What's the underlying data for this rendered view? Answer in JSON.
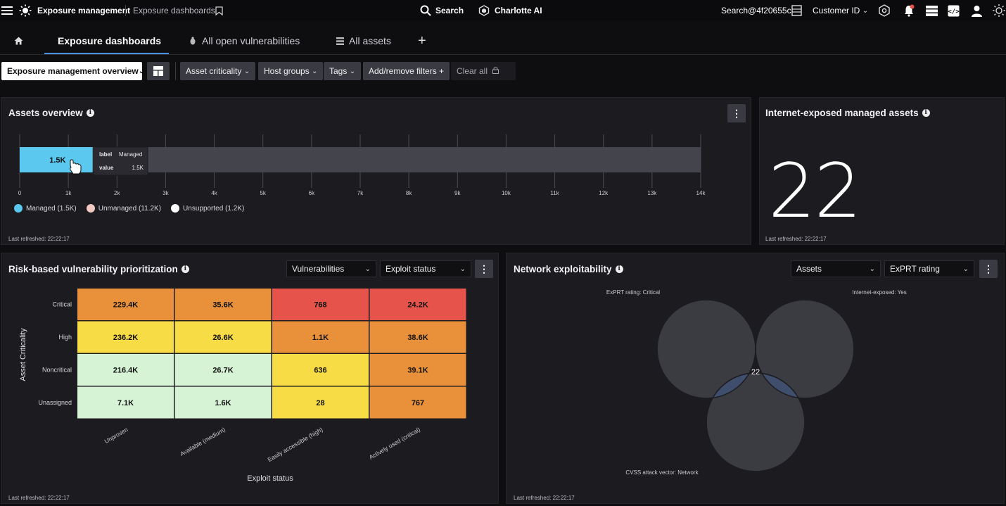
{
  "topbar": {
    "app_name": "Exposure management",
    "breadcrumb": "Exposure dashboards",
    "search_label": "Search",
    "charlotte_label": "Charlotte AI",
    "user": "Search@4f20655c",
    "customer_label": "Customer ID"
  },
  "tabs": [
    {
      "label": "Exposure dashboards",
      "active": true
    },
    {
      "label": "All open vulnerabilities",
      "active": false
    },
    {
      "label": "All assets",
      "active": false
    }
  ],
  "filters": {
    "dashboard_select": "Exposure management overview",
    "asset_criticality": "Asset criticality",
    "host_groups": "Host groups",
    "tags": "Tags",
    "add_remove": "Add/remove filters",
    "clear_all": "Clear all"
  },
  "assets_overview": {
    "title": "Assets overview",
    "bar_label": "1.5K",
    "tooltip": {
      "label_key": "label",
      "label_value": "Managed",
      "value_key": "value",
      "value_value": "1.5K"
    },
    "ticks": [
      "0",
      "1k",
      "2k",
      "3k",
      "4k",
      "5k",
      "6k",
      "7k",
      "8k",
      "9k",
      "10k",
      "11k",
      "12k",
      "13k",
      "14k"
    ],
    "legend": [
      {
        "label": "Managed (1.5K)",
        "color": "#5bc8ef"
      },
      {
        "label": "Unmanaged (11.2K)",
        "color": "#f2c8c2"
      },
      {
        "label": "Unsupported (1.2K)",
        "color": "#ffffff"
      }
    ],
    "refreshed": "Last refreshed: 22:22:17"
  },
  "internet_exposed": {
    "title": "Internet-exposed managed assets",
    "value": "22",
    "refreshed": "Last refreshed: 22:22:17"
  },
  "risk_prioritization": {
    "title": "Risk-based vulnerability prioritization",
    "select1": "Vulnerabilities",
    "select2": "Exploit status",
    "y_axis_label": "Asset Criticality",
    "x_axis_label": "Exploit status",
    "rows": [
      "Critical",
      "High",
      "Noncritical",
      "Unassigned"
    ],
    "cols": [
      "Unproven",
      "Available (medium)",
      "Easily accessible (high)",
      "Actively used (critical)"
    ],
    "cells": [
      [
        "229.4K",
        "35.6K",
        "768",
        "24.2K"
      ],
      [
        "236.2K",
        "26.6K",
        "1.1K",
        "38.6K"
      ],
      [
        "216.4K",
        "26.7K",
        "636",
        "39.1K"
      ],
      [
        "7.1K",
        "1.6K",
        "28",
        "767"
      ]
    ],
    "refreshed": "Last refreshed: 22:22:17"
  },
  "network_exploitability": {
    "title": "Network exploitability",
    "select1": "Assets",
    "select2": "ExPRT rating",
    "set_a": "ExPRT rating: Critical",
    "set_b": "Internet-exposed: Yes",
    "set_c": "CVSS attack vector: Network",
    "intersection": "22",
    "refreshed": "Last refreshed: 22:22:17"
  },
  "chart_data": [
    {
      "type": "bar",
      "title": "Assets overview",
      "orientation": "horizontal-stacked",
      "series": [
        {
          "name": "Managed (1.5K)",
          "values": [
            1500
          ]
        },
        {
          "name": "Unmanaged (11.2K)",
          "values": [
            11200
          ]
        },
        {
          "name": "Unsupported (1.2K)",
          "values": [
            1200
          ]
        }
      ],
      "xlim": [
        0,
        14000
      ],
      "legend_position": "bottom-left"
    },
    {
      "type": "heatmap",
      "title": "Risk-based vulnerability prioritization",
      "xlabel": "Exploit status",
      "ylabel": "Asset Criticality",
      "x": [
        "Unproven",
        "Available (medium)",
        "Easily accessible (high)",
        "Actively used (critical)"
      ],
      "y": [
        "Critical",
        "High",
        "Noncritical",
        "Unassigned"
      ],
      "values": [
        [
          229400,
          35600,
          768,
          24200
        ],
        [
          236200,
          26600,
          1100,
          38600
        ],
        [
          216400,
          26700,
          636,
          39100
        ],
        [
          7100,
          1600,
          28,
          767
        ]
      ],
      "cell_colors": [
        [
          "orange",
          "orange",
          "red",
          "red"
        ],
        [
          "yellow",
          "yellow",
          "orange",
          "orange"
        ],
        [
          "green",
          "green",
          "yellow",
          "orange"
        ],
        [
          "green",
          "green",
          "yellow",
          "orange"
        ]
      ]
    }
  ],
  "colors": {
    "orange": "#e8913a",
    "red": "#e5534b",
    "yellow": "#f7dc45",
    "green": "#d6f3d6",
    "managed": "#5bc8ef",
    "accent": "#4a90e2"
  }
}
